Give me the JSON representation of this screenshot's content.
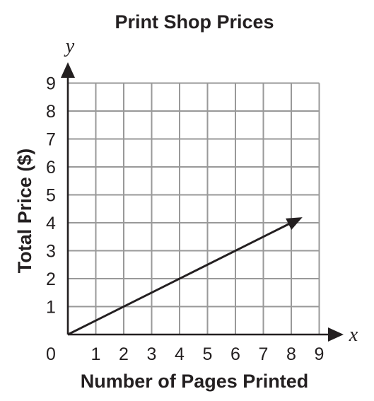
{
  "chart_data": {
    "type": "line",
    "title": "Print Shop Prices",
    "xlabel": "Number of Pages Printed",
    "ylabel": "Total Price ($)",
    "x_var": "x",
    "y_var": "y",
    "origin_label": "0",
    "xlim": [
      0,
      9
    ],
    "ylim": [
      0,
      9
    ],
    "x_ticks": [
      "1",
      "2",
      "3",
      "4",
      "5",
      "6",
      "7",
      "8",
      "9"
    ],
    "y_ticks": [
      "1",
      "2",
      "3",
      "4",
      "5",
      "6",
      "7",
      "8",
      "9"
    ],
    "grid": true,
    "series": [
      {
        "x": [
          0,
          2,
          4,
          6,
          8,
          8.4
        ],
        "y": [
          0,
          1,
          2,
          3,
          4,
          4.2
        ],
        "arrow_end": true
      }
    ],
    "colors": {
      "line": "#231f20",
      "grid": "#999999",
      "axis": "#231f20"
    }
  }
}
